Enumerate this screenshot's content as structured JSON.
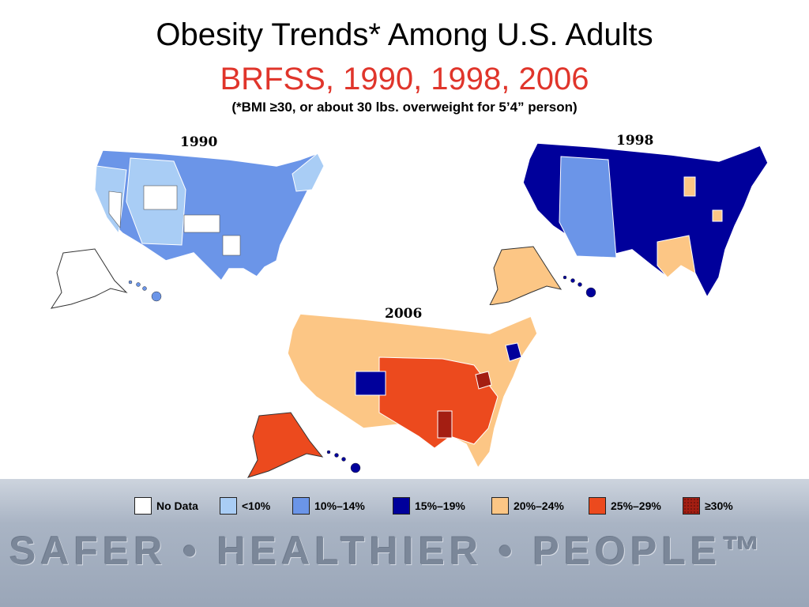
{
  "title": "Obesity Trends* Among U.S. Adults",
  "subtitle": "BRFSS, 1990, 1998, 2006",
  "note": "(*BMI ≥30, or about 30 lbs. overweight for 5’4” person)",
  "maps": [
    {
      "year": "1990",
      "dominant_category": "10%–14%"
    },
    {
      "year": "1998",
      "dominant_category": "15%–19%"
    },
    {
      "year": "2006",
      "dominant_category": "20%–24%"
    }
  ],
  "legend": [
    {
      "label": "No Data",
      "color": "#ffffff"
    },
    {
      "label": "<10%",
      "color": "#a9cdf5"
    },
    {
      "label": "10%–14%",
      "color": "#6b95e8"
    },
    {
      "label": "15%–19%",
      "color": "#00009b"
    },
    {
      "label": "20%–24%",
      "color": "#fcc685"
    },
    {
      "label": "25%–29%",
      "color": "#ec4a1e"
    },
    {
      "label": "≥30%",
      "color": "#a41e12",
      "pattern": "dotted"
    }
  ],
  "footer": {
    "slogan": "SAFER • HEALTHIER • PEOPLE™",
    "background_lines": []
  }
}
